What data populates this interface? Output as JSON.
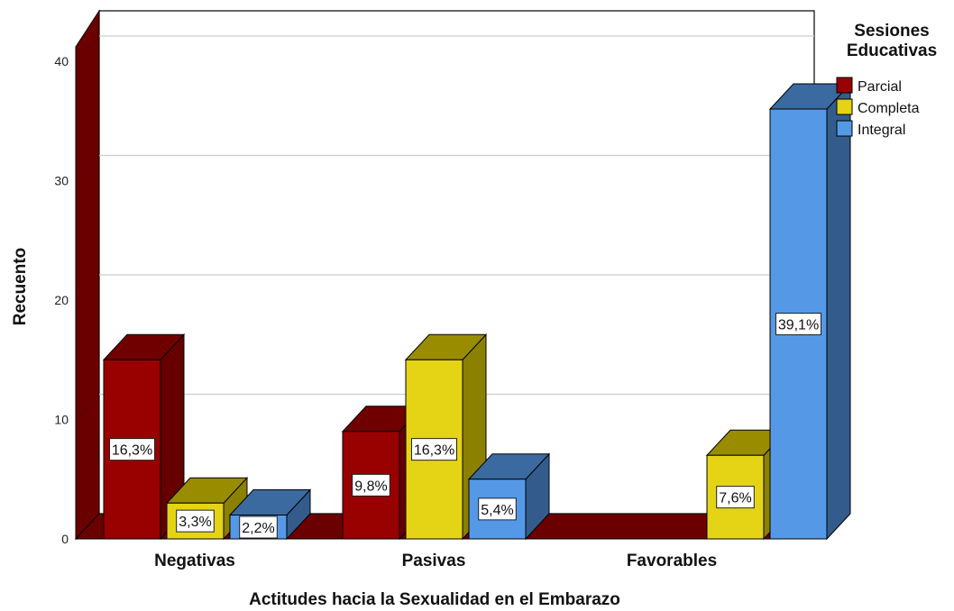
{
  "chart_data": {
    "type": "bar",
    "categories": [
      "Negativas",
      "Pasivas",
      "Favorables"
    ],
    "series": [
      {
        "name": "Parcial",
        "values": [
          15,
          9,
          0
        ],
        "labels": [
          "16,3%",
          "9,8%",
          ""
        ],
        "color": "#990000",
        "side": "#660000",
        "top": "#700000"
      },
      {
        "name": "Completa",
        "values": [
          3,
          15,
          7
        ],
        "labels": [
          "3,3%",
          "16,3%",
          "7,6%"
        ],
        "color": "#e5d416",
        "side": "#8c8000",
        "top": "#9a8c00"
      },
      {
        "name": "Integral",
        "values": [
          2,
          5,
          36
        ],
        "labels": [
          "2,2%",
          "5,4%",
          "39,1%"
        ],
        "color": "#5599e6",
        "side": "#335c8c",
        "top": "#3b6aa0"
      }
    ],
    "xlabel": "Actitudes hacia la Sexualidad en el Embarazo",
    "ylabel": "Recuento",
    "ylim": [
      0,
      42
    ],
    "yticks": [
      0,
      10,
      20,
      30,
      40
    ],
    "legend_title": "Sesiones Educativas",
    "legend_title_lines": [
      "Sesiones",
      "Educativas"
    ],
    "legend_position": "top-right",
    "grid": true,
    "wall_color": "#6b0000",
    "floor_color": "#6b0000"
  }
}
